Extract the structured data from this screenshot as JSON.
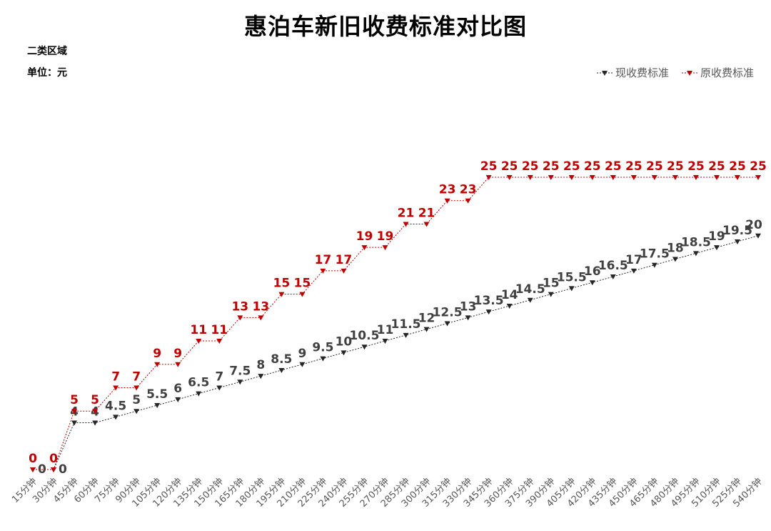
{
  "page": {
    "title": "惠泊车新旧收费标准对比图",
    "subtitle_area": "二类区域",
    "subtitle_unit": "单位：元"
  },
  "colors": {
    "current": "#262626",
    "original": "#c00000"
  },
  "chart_data": {
    "type": "line",
    "title": "惠泊车新旧收费标准对比图",
    "legend_position": "top-right",
    "grid": false,
    "categories": [
      "15分钟",
      "30分钟",
      "45分钟",
      "60分钟",
      "75分钟",
      "90分钟",
      "105分钟",
      "120分钟",
      "135分钟",
      "150分钟",
      "165分钟",
      "180分钟",
      "195分钟",
      "210分钟",
      "225分钟",
      "240分钟",
      "255分钟",
      "270分钟",
      "285分钟",
      "300分钟",
      "315分钟",
      "330分钟",
      "345分钟",
      "360分钟",
      "375分钟",
      "390分钟",
      "405分钟",
      "420分钟",
      "435分钟",
      "450分钟",
      "465分钟",
      "480分钟",
      "495分钟",
      "510分钟",
      "525分钟",
      "540分钟"
    ],
    "series": [
      {
        "name": "现收费标准",
        "values": [
          0,
          0,
          4,
          4,
          4.5,
          5,
          5.5,
          6,
          6.5,
          7,
          7.5,
          8,
          8.5,
          9,
          9.5,
          10,
          10.5,
          11,
          11.5,
          12,
          12.5,
          13,
          13.5,
          14,
          14.5,
          15,
          15.5,
          16,
          16.5,
          17,
          17.5,
          18,
          18.5,
          19,
          19.5,
          20
        ]
      },
      {
        "name": "原收费标准",
        "values": [
          0,
          0,
          5,
          5,
          7,
          7,
          9,
          9,
          11,
          11,
          13,
          13,
          15,
          15,
          17,
          17,
          19,
          19,
          21,
          21,
          23,
          23,
          25,
          25,
          25,
          25,
          25,
          25,
          25,
          25,
          25,
          25,
          25,
          25,
          25,
          25
        ]
      }
    ]
  }
}
